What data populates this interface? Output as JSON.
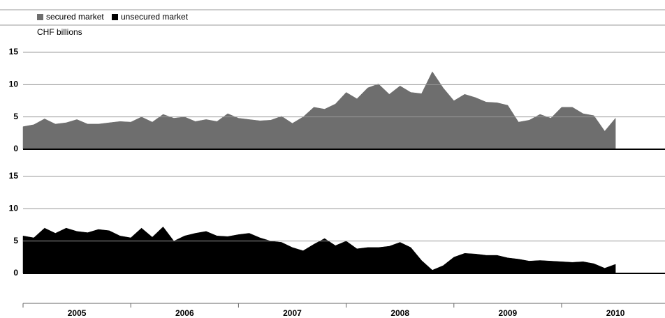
{
  "legend_title": null,
  "chart_data": [
    {
      "type": "area",
      "ylabel": "CHF billions",
      "x": [
        2005.0,
        2005.1,
        2005.2,
        2005.3,
        2005.4,
        2005.5,
        2005.6,
        2005.7,
        2005.8,
        2005.9,
        2006.0,
        2006.1,
        2006.2,
        2006.3,
        2006.4,
        2006.5,
        2006.6,
        2006.7,
        2006.8,
        2006.9,
        2007.0,
        2007.1,
        2007.2,
        2007.3,
        2007.4,
        2007.5,
        2007.6,
        2007.7,
        2007.8,
        2007.9,
        2008.0,
        2008.1,
        2008.2,
        2008.3,
        2008.4,
        2008.5,
        2008.6,
        2008.7,
        2008.8,
        2008.9,
        2009.0,
        2009.1,
        2009.2,
        2009.3,
        2009.4,
        2009.5,
        2009.6,
        2009.7,
        2009.8,
        2009.9,
        2010.0,
        2010.1,
        2010.2,
        2010.3,
        2010.4,
        2010.5
      ],
      "series": [
        {
          "name": "secured market",
          "color": "#6e6e6e",
          "values": [
            3.5,
            3.8,
            4.7,
            3.9,
            4.1,
            4.6,
            3.9,
            3.9,
            4.1,
            4.3,
            4.2,
            5.0,
            4.2,
            5.4,
            4.8,
            5.0,
            4.3,
            4.6,
            4.3,
            5.5,
            4.8,
            4.6,
            4.4,
            4.5,
            5.1,
            4.0,
            5.0,
            6.5,
            6.2,
            7.0,
            8.8,
            7.8,
            9.5,
            10.1,
            8.5,
            9.8,
            8.8,
            8.6,
            12.0,
            9.5,
            7.5,
            8.5,
            8.0,
            7.3,
            7.2,
            6.8,
            4.2,
            4.5,
            5.4,
            4.8,
            6.5,
            6.5,
            5.5,
            5.2,
            2.8,
            4.8
          ]
        }
      ],
      "xlim": [
        2005,
        2010.96
      ],
      "ylim": [
        0,
        15
      ],
      "yticks": [
        0,
        5,
        10,
        15
      ],
      "grid": true
    },
    {
      "type": "area",
      "x": [
        2005.0,
        2005.1,
        2005.2,
        2005.3,
        2005.4,
        2005.5,
        2005.6,
        2005.7,
        2005.8,
        2005.9,
        2006.0,
        2006.1,
        2006.2,
        2006.3,
        2006.4,
        2006.5,
        2006.6,
        2006.7,
        2006.8,
        2006.9,
        2007.0,
        2007.1,
        2007.2,
        2007.3,
        2007.4,
        2007.5,
        2007.6,
        2007.7,
        2007.8,
        2007.9,
        2008.0,
        2008.1,
        2008.2,
        2008.3,
        2008.4,
        2008.5,
        2008.6,
        2008.7,
        2008.8,
        2008.9,
        2009.0,
        2009.1,
        2009.2,
        2009.3,
        2009.4,
        2009.5,
        2009.6,
        2009.7,
        2009.8,
        2009.9,
        2010.0,
        2010.1,
        2010.2,
        2010.3,
        2010.4,
        2010.5
      ],
      "series": [
        {
          "name": "unsecured market",
          "color": "#000000",
          "values": [
            5.8,
            5.5,
            7.0,
            6.2,
            7.0,
            6.5,
            6.3,
            6.8,
            6.6,
            5.8,
            5.5,
            7.0,
            5.6,
            7.2,
            5.0,
            5.8,
            6.2,
            6.5,
            5.8,
            5.7,
            6.0,
            6.2,
            5.5,
            5.0,
            4.8,
            4.0,
            3.5,
            4.5,
            5.4,
            4.3,
            5.0,
            3.8,
            4.0,
            4.0,
            4.2,
            4.8,
            4.0,
            2.0,
            0.5,
            1.2,
            2.5,
            3.1,
            3.0,
            2.8,
            2.8,
            2.4,
            2.2,
            1.9,
            2.0,
            1.9,
            1.8,
            1.7,
            1.8,
            1.5,
            0.8,
            1.4
          ]
        }
      ],
      "xlim": [
        2005,
        2010.96
      ],
      "ylim": [
        0,
        15
      ],
      "yticks": [
        0,
        5,
        10,
        15
      ],
      "grid": true,
      "xticks": [
        {
          "value": 2005,
          "label": "2005"
        },
        {
          "value": 2006,
          "label": "2006"
        },
        {
          "value": 2007,
          "label": "2007"
        },
        {
          "value": 2008,
          "label": "2008"
        },
        {
          "value": 2009,
          "label": "2009"
        },
        {
          "value": 2010,
          "label": "2010"
        }
      ]
    }
  ]
}
